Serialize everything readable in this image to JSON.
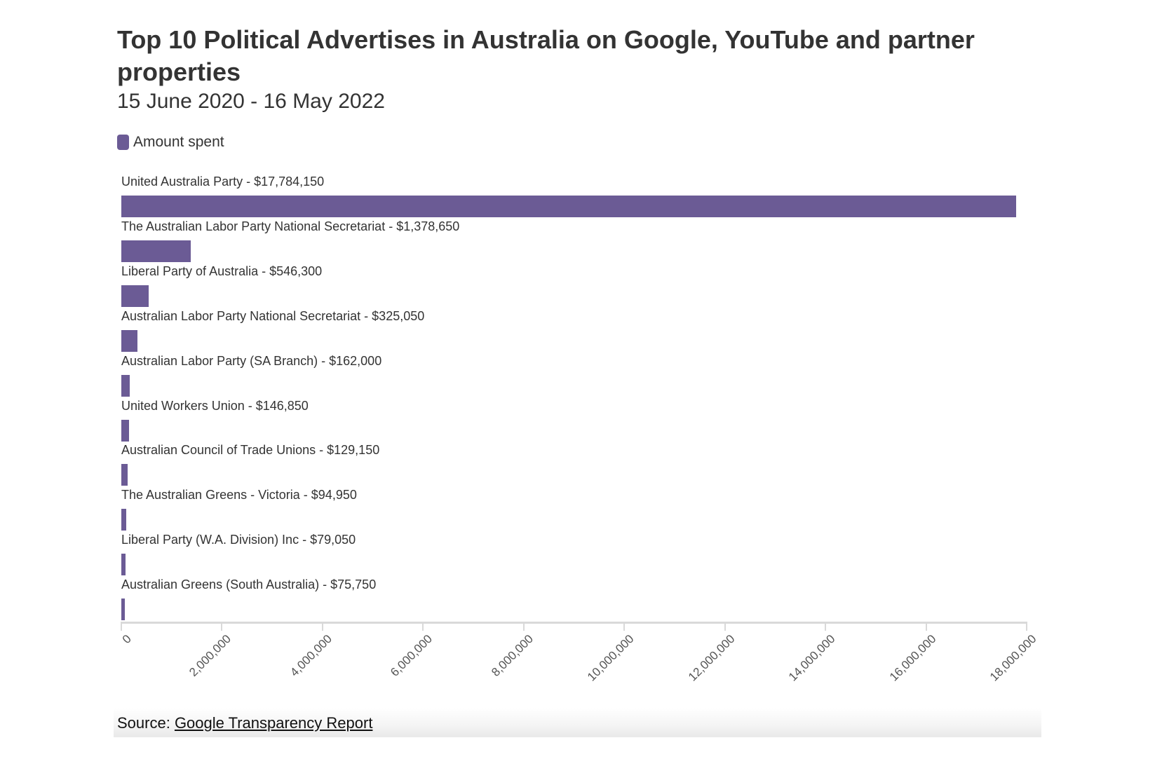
{
  "header": {
    "title": "Top 10 Political Advertises in Australia on Google, YouTube and partner properties",
    "subtitle": "15 June 2020 - 16 May 2022"
  },
  "legend": {
    "label": "Amount spent",
    "color": "#6b5b95"
  },
  "footer": {
    "source_prefix": "Source: ",
    "source_link": "Google Transparency Report"
  },
  "rows": [
    {
      "label": "United Australia Party - $17,784,150"
    },
    {
      "label": "The Australian Labor Party National Secretariat - $1,378,650"
    },
    {
      "label": "Liberal Party of Australia - $546,300"
    },
    {
      "label": "Australian Labor Party National Secretariat - $325,050"
    },
    {
      "label": "Australian Labor Party (SA Branch) - $162,000"
    },
    {
      "label": "United Workers Union - $146,850"
    },
    {
      "label": "Australian Council of Trade Unions - $129,150"
    },
    {
      "label": "The Australian Greens - Victoria - $94,950"
    },
    {
      "label": "Liberal Party (W.A. Division) Inc - $79,050"
    },
    {
      "label": "Australian Greens (South Australia) - $75,750"
    }
  ],
  "axis": {
    "ticks": [
      "0",
      "2,000,000",
      "4,000,000",
      "6,000,000",
      "8,000,000",
      "10,000,000",
      "12,000,000",
      "14,000,000",
      "16,000,000",
      "18,000,000"
    ]
  },
  "chart_data": {
    "type": "bar",
    "orientation": "horizontal",
    "title": "Top 10 Political Advertises in Australia on Google, YouTube and partner properties",
    "subtitle": "15 June 2020 - 16 May 2022",
    "xlabel": "",
    "ylabel": "",
    "xlim": [
      0,
      18000000
    ],
    "grid": false,
    "legend": {
      "entries": [
        "Amount spent"
      ],
      "position": "top-left"
    },
    "categories": [
      "United Australia Party",
      "The Australian Labor Party National Secretariat",
      "Liberal Party of Australia",
      "Australian Labor Party National Secretariat",
      "Australian Labor Party (SA Branch)",
      "United Workers Union",
      "Australian Council of Trade Unions",
      "The Australian Greens - Victoria",
      "Liberal Party (W.A. Division) Inc",
      "Australian Greens (South Australia)"
    ],
    "series": [
      {
        "name": "Amount spent",
        "color": "#6b5b95",
        "values": [
          17784150,
          1378650,
          546300,
          325050,
          162000,
          146850,
          129150,
          94950,
          79050,
          75750
        ]
      }
    ],
    "x_ticks": [
      0,
      2000000,
      4000000,
      6000000,
      8000000,
      10000000,
      12000000,
      14000000,
      16000000,
      18000000
    ],
    "source": "Source: Google Transparency Report"
  }
}
